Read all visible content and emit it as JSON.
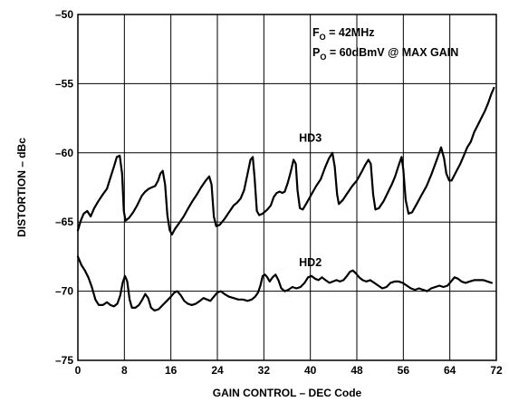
{
  "chart_data": {
    "type": "line",
    "xlabel": "GAIN CONTROL – DEC Code",
    "ylabel": "DISTORTION – dBc",
    "xlim": [
      0,
      72
    ],
    "ylim": [
      -75,
      -50
    ],
    "xticks": [
      0,
      8,
      16,
      24,
      32,
      40,
      48,
      56,
      64,
      72
    ],
    "yticks": [
      -50,
      -55,
      -60,
      -65,
      -70,
      -75
    ],
    "xtick_labels": [
      "0",
      "8",
      "16",
      "24",
      "32",
      "40",
      "48",
      "56",
      "64",
      "72"
    ],
    "ytick_labels": [
      "–50",
      "–55",
      "–60",
      "–65",
      "–70",
      "–75"
    ],
    "grid": true,
    "annotations": [
      {
        "main": "F",
        "sub": "O",
        "rest": " = 42MHz"
      },
      {
        "main": "P",
        "sub": "O",
        "rest": " = 60dBmV @ MAX GAIN"
      }
    ],
    "series": [
      {
        "name": "HD3",
        "points": [
          [
            0,
            -65.6
          ],
          [
            0.5,
            -64.9
          ],
          [
            1,
            -64.4
          ],
          [
            1.6,
            -64.2
          ],
          [
            2.2,
            -64.6
          ],
          [
            2.8,
            -64.0
          ],
          [
            3.5,
            -63.5
          ],
          [
            4.3,
            -63.0
          ],
          [
            5,
            -62.6
          ],
          [
            5.6,
            -61.8
          ],
          [
            6.2,
            -61.0
          ],
          [
            6.7,
            -60.3
          ],
          [
            7.2,
            -60.2
          ],
          [
            7.6,
            -61.5
          ],
          [
            7.9,
            -64.2
          ],
          [
            8.2,
            -64.9
          ],
          [
            8.8,
            -64.7
          ],
          [
            9.5,
            -64.3
          ],
          [
            10.2,
            -63.8
          ],
          [
            11,
            -63.1
          ],
          [
            11.6,
            -62.8
          ],
          [
            12.2,
            -62.6
          ],
          [
            12.7,
            -62.5
          ],
          [
            13.3,
            -62.4
          ],
          [
            13.8,
            -62.0
          ],
          [
            14.2,
            -61.5
          ],
          [
            14.6,
            -61.3
          ],
          [
            15,
            -62.3
          ],
          [
            15.4,
            -64.5
          ],
          [
            15.8,
            -65.6
          ],
          [
            16.2,
            -65.9
          ],
          [
            16.7,
            -65.5
          ],
          [
            17.4,
            -65.1
          ],
          [
            18.2,
            -64.6
          ],
          [
            19,
            -64.0
          ],
          [
            19.7,
            -63.5
          ],
          [
            20.5,
            -63.0
          ],
          [
            21.2,
            -62.5
          ],
          [
            22,
            -62.0
          ],
          [
            22.6,
            -61.7
          ],
          [
            23,
            -62.3
          ],
          [
            23.4,
            -64.6
          ],
          [
            23.8,
            -65.3
          ],
          [
            24.4,
            -65.2
          ],
          [
            25.2,
            -64.8
          ],
          [
            26,
            -64.3
          ],
          [
            26.8,
            -63.8
          ],
          [
            27.4,
            -63.6
          ],
          [
            28,
            -63.3
          ],
          [
            28.6,
            -62.7
          ],
          [
            29.2,
            -61.5
          ],
          [
            29.7,
            -60.5
          ],
          [
            30.1,
            -60.3
          ],
          [
            30.4,
            -61.8
          ],
          [
            30.8,
            -64.2
          ],
          [
            31.2,
            -64.5
          ],
          [
            31.8,
            -64.4
          ],
          [
            32.6,
            -64.1
          ],
          [
            33.2,
            -63.8
          ],
          [
            33.7,
            -63.2
          ],
          [
            34.2,
            -62.9
          ],
          [
            34.7,
            -62.8
          ],
          [
            35.2,
            -62.9
          ],
          [
            35.6,
            -62.8
          ],
          [
            36.1,
            -62.2
          ],
          [
            36.6,
            -61.4
          ],
          [
            37.1,
            -60.5
          ],
          [
            37.5,
            -60.8
          ],
          [
            37.8,
            -62.7
          ],
          [
            38.2,
            -64.0
          ],
          [
            38.7,
            -64.1
          ],
          [
            39.4,
            -63.6
          ],
          [
            40.2,
            -63.0
          ],
          [
            41,
            -62.4
          ],
          [
            41.8,
            -61.9
          ],
          [
            42.5,
            -61.1
          ],
          [
            43.2,
            -60.4
          ],
          [
            43.8,
            -60.0
          ],
          [
            44.2,
            -61.0
          ],
          [
            44.6,
            -63.0
          ],
          [
            44.9,
            -63.7
          ],
          [
            45.6,
            -63.4
          ],
          [
            46.4,
            -62.9
          ],
          [
            47.2,
            -62.4
          ],
          [
            48,
            -62.0
          ],
          [
            48.8,
            -61.4
          ],
          [
            49.4,
            -60.9
          ],
          [
            50,
            -60.5
          ],
          [
            50.4,
            -60.8
          ],
          [
            50.8,
            -63.0
          ],
          [
            51.2,
            -64.1
          ],
          [
            51.8,
            -64.0
          ],
          [
            52.6,
            -63.5
          ],
          [
            53.4,
            -62.8
          ],
          [
            54,
            -62.3
          ],
          [
            54.6,
            -61.7
          ],
          [
            55.2,
            -60.9
          ],
          [
            55.7,
            -60.3
          ],
          [
            56,
            -61.2
          ],
          [
            56.4,
            -63.4
          ],
          [
            56.9,
            -64.4
          ],
          [
            57.5,
            -64.3
          ],
          [
            58.3,
            -63.7
          ],
          [
            59.2,
            -63.0
          ],
          [
            60,
            -62.4
          ],
          [
            60.8,
            -61.6
          ],
          [
            61.5,
            -60.8
          ],
          [
            62.1,
            -60.1
          ],
          [
            62.5,
            -59.6
          ],
          [
            63,
            -60.4
          ],
          [
            63.4,
            -61.5
          ],
          [
            63.9,
            -62.0
          ],
          [
            64.3,
            -62.0
          ],
          [
            64.8,
            -61.6
          ],
          [
            65.3,
            -61.2
          ],
          [
            65.8,
            -60.8
          ],
          [
            66.4,
            -60.2
          ],
          [
            67,
            -59.6
          ],
          [
            67.6,
            -59.2
          ],
          [
            68.2,
            -58.5
          ],
          [
            68.8,
            -58.0
          ],
          [
            69.4,
            -57.5
          ],
          [
            70,
            -57.0
          ],
          [
            70.6,
            -56.4
          ],
          [
            71.1,
            -55.8
          ],
          [
            71.6,
            -55.3
          ]
        ]
      },
      {
        "name": "HD2",
        "points": [
          [
            0,
            -67.5
          ],
          [
            0.6,
            -68.1
          ],
          [
            1.2,
            -68.5
          ],
          [
            1.8,
            -69.0
          ],
          [
            2.4,
            -69.7
          ],
          [
            3,
            -70.6
          ],
          [
            3.6,
            -71.0
          ],
          [
            4.3,
            -71.0
          ],
          [
            5,
            -70.8
          ],
          [
            5.6,
            -71.0
          ],
          [
            6.2,
            -71.1
          ],
          [
            6.8,
            -70.9
          ],
          [
            7.3,
            -70.3
          ],
          [
            7.7,
            -69.4
          ],
          [
            8.1,
            -68.9
          ],
          [
            8.5,
            -69.3
          ],
          [
            8.9,
            -70.6
          ],
          [
            9.3,
            -71.2
          ],
          [
            9.9,
            -71.2
          ],
          [
            10.5,
            -71.0
          ],
          [
            11.1,
            -70.6
          ],
          [
            11.6,
            -70.2
          ],
          [
            12.1,
            -70.5
          ],
          [
            12.6,
            -71.2
          ],
          [
            13.2,
            -71.4
          ],
          [
            13.9,
            -71.3
          ],
          [
            14.6,
            -71.0
          ],
          [
            15.3,
            -70.7
          ],
          [
            16,
            -70.4
          ],
          [
            16.6,
            -70.1
          ],
          [
            17.1,
            -70.0
          ],
          [
            17.7,
            -70.3
          ],
          [
            18.3,
            -70.7
          ],
          [
            18.9,
            -70.9
          ],
          [
            19.6,
            -71.0
          ],
          [
            20.3,
            -70.9
          ],
          [
            21,
            -70.7
          ],
          [
            21.6,
            -70.5
          ],
          [
            22.2,
            -70.6
          ],
          [
            22.8,
            -70.7
          ],
          [
            23.4,
            -70.4
          ],
          [
            24,
            -70.1
          ],
          [
            24.6,
            -70.0
          ],
          [
            25.2,
            -70.2
          ],
          [
            26,
            -70.4
          ],
          [
            26.8,
            -70.5
          ],
          [
            27.6,
            -70.6
          ],
          [
            28.4,
            -70.6
          ],
          [
            29.2,
            -70.7
          ],
          [
            29.9,
            -70.6
          ],
          [
            30.5,
            -70.4
          ],
          [
            31,
            -70.1
          ],
          [
            31.4,
            -69.6
          ],
          [
            31.8,
            -68.9
          ],
          [
            32.2,
            -68.8
          ],
          [
            32.6,
            -69.0
          ],
          [
            33,
            -69.3
          ],
          [
            33.5,
            -69.0
          ],
          [
            34,
            -68.8
          ],
          [
            34.5,
            -69.2
          ],
          [
            35,
            -69.8
          ],
          [
            35.6,
            -70.0
          ],
          [
            36.2,
            -69.9
          ],
          [
            36.9,
            -69.7
          ],
          [
            37.6,
            -69.8
          ],
          [
            38.3,
            -69.7
          ],
          [
            39,
            -69.4
          ],
          [
            39.6,
            -69.0
          ],
          [
            40.2,
            -68.9
          ],
          [
            40.8,
            -69.1
          ],
          [
            41.4,
            -69.2
          ],
          [
            42,
            -69.0
          ],
          [
            42.6,
            -69.2
          ],
          [
            43.3,
            -69.4
          ],
          [
            43.9,
            -69.3
          ],
          [
            44.5,
            -69.2
          ],
          [
            45.1,
            -69.3
          ],
          [
            45.7,
            -69.2
          ],
          [
            46.3,
            -68.9
          ],
          [
            46.8,
            -68.6
          ],
          [
            47.3,
            -68.5
          ],
          [
            47.8,
            -68.7
          ],
          [
            48.4,
            -69.0
          ],
          [
            49,
            -69.2
          ],
          [
            49.6,
            -69.3
          ],
          [
            50.3,
            -69.2
          ],
          [
            51,
            -69.4
          ],
          [
            51.7,
            -69.6
          ],
          [
            52.4,
            -69.8
          ],
          [
            53.1,
            -69.7
          ],
          [
            53.8,
            -69.4
          ],
          [
            54.5,
            -69.3
          ],
          [
            55.2,
            -69.3
          ],
          [
            55.9,
            -69.4
          ],
          [
            56.6,
            -69.6
          ],
          [
            57.3,
            -69.8
          ],
          [
            58,
            -69.9
          ],
          [
            58.7,
            -69.8
          ],
          [
            59.4,
            -69.9
          ],
          [
            60.1,
            -70.0
          ],
          [
            60.8,
            -69.8
          ],
          [
            61.5,
            -69.7
          ],
          [
            62.2,
            -69.6
          ],
          [
            62.9,
            -69.7
          ],
          [
            63.6,
            -69.6
          ],
          [
            64.2,
            -69.3
          ],
          [
            64.8,
            -69.0
          ],
          [
            65.4,
            -69.1
          ],
          [
            66,
            -69.3
          ],
          [
            66.7,
            -69.4
          ],
          [
            67.4,
            -69.3
          ],
          [
            68.2,
            -69.2
          ],
          [
            69,
            -69.2
          ],
          [
            69.8,
            -69.2
          ],
          [
            70.5,
            -69.3
          ],
          [
            71.2,
            -69.4
          ]
        ]
      }
    ],
    "series_labels": [
      {
        "series": "HD3",
        "x": 40.0,
        "y": -59.2
      },
      {
        "series": "HD2",
        "x": 40.0,
        "y": -68.2
      }
    ]
  }
}
